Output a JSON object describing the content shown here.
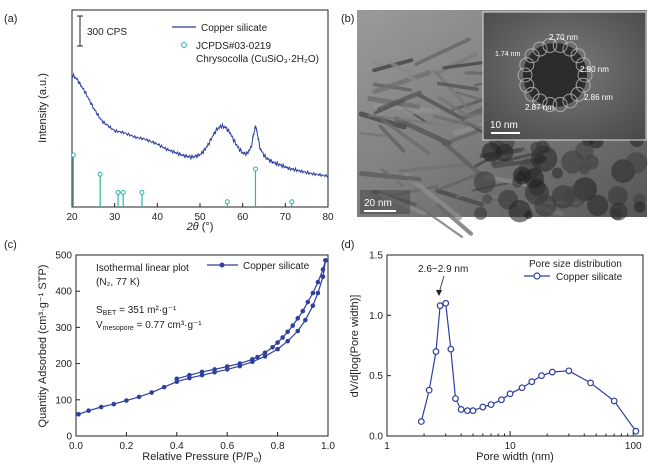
{
  "panels": {
    "a": "(a)",
    "b": "(b)",
    "c": "(c)",
    "d": "(d)"
  },
  "chart_data": [
    {
      "id": "xrd",
      "type": "line",
      "xlabel_prefix": "2θ",
      "xlabel_suffix": " (°)",
      "ylabel": "Intensity (a.u.)",
      "xlim": [
        20,
        80
      ],
      "x_ticks": [
        20,
        30,
        40,
        50,
        60,
        70,
        80
      ],
      "scale_bar_label": "300 CPS",
      "series": [
        {
          "name": "Copper silicate",
          "color": "#2e3f9e",
          "x": [
            20,
            21,
            22,
            23,
            24,
            25,
            26,
            27,
            28,
            29,
            30,
            31,
            32,
            33,
            34,
            35,
            36,
            37,
            38,
            39,
            40,
            41,
            42,
            43,
            44,
            45,
            46,
            47,
            48,
            49,
            50,
            51,
            52,
            53,
            54,
            55,
            56,
            57,
            58,
            59,
            60,
            61,
            62,
            62.5,
            63,
            63.5,
            64,
            65,
            66,
            67,
            68,
            69,
            70,
            71,
            72,
            73,
            74,
            75,
            76,
            77,
            78,
            79,
            80
          ],
          "y": [
            1000,
            980,
            940,
            900,
            850,
            800,
            760,
            720,
            700,
            680,
            660,
            655,
            650,
            640,
            630,
            620,
            615,
            610,
            600,
            590,
            580,
            565,
            550,
            540,
            530,
            520,
            510,
            505,
            500,
            505,
            515,
            540,
            580,
            630,
            670,
            690,
            680,
            650,
            600,
            555,
            525,
            520,
            560,
            630,
            690,
            640,
            560,
            510,
            485,
            470,
            460,
            450,
            440,
            430,
            425,
            418,
            412,
            406,
            400,
            396,
            392,
            388,
            385
          ]
        }
      ],
      "reference": {
        "name": "JCPDS#03-0219",
        "name2": "Chrysocolla (CuSiO₃·2H₂O)",
        "color": "#2fb5a8",
        "x": [
          20.3,
          26.6,
          30.8,
          32.0,
          36.4,
          56.4,
          63.0,
          71.5
        ],
        "intensity": [
          100,
          63,
          28,
          28,
          28,
          10,
          73,
          10
        ]
      }
    },
    {
      "id": "tem",
      "type": "image",
      "scale_label": "20 nm",
      "inset_scale_label": "10 nm",
      "lattice_labels": [
        "1.74 nm",
        "2.70 nm",
        "2.90 nm",
        "2.86 nm",
        "2.87 nm"
      ]
    },
    {
      "id": "isotherm",
      "type": "line",
      "xlabel": "Relative Pressure (P/P",
      "xlabel_sub": "o",
      "xlabel_end": ")",
      "ylabel": "Quantity Adsorbed (cm³·g⁻¹ STP)",
      "xlim": [
        0,
        1.0
      ],
      "ylim": [
        0,
        500
      ],
      "x_ticks": [
        "0.0",
        "0.2",
        "0.4",
        "0.6",
        "0.8",
        "1.0"
      ],
      "y_ticks": [
        0,
        100,
        200,
        300,
        400,
        500
      ],
      "annotation_title": "Isothermal linear plot",
      "annotation_cond": "(N₂, 77 K)",
      "sbet_label": "S",
      "sbet_sub": "BET",
      "sbet_value": " = 351 m²·g⁻¹",
      "vmeso_label": "V",
      "vmeso_sub": "mesopore",
      "vmeso_value": " = 0.77 cm³·g⁻¹",
      "series": [
        {
          "name": "Copper silicate",
          "color": "#2e3f9e",
          "adsorption": {
            "x": [
              0.01,
              0.05,
              0.1,
              0.15,
              0.2,
              0.25,
              0.3,
              0.35,
              0.4,
              0.45,
              0.5,
              0.55,
              0.6,
              0.65,
              0.7,
              0.75,
              0.8,
              0.84,
              0.88,
              0.91,
              0.94,
              0.96,
              0.98,
              0.99
            ],
            "y": [
              60,
              70,
              80,
              88,
              98,
              108,
              120,
              135,
              150,
              160,
              168,
              176,
              184,
              193,
              205,
              220,
              240,
              262,
              290,
              320,
              360,
              395,
              440,
              485
            ]
          },
          "desorption": {
            "x": [
              0.99,
              0.98,
              0.96,
              0.94,
              0.92,
              0.9,
              0.88,
              0.86,
              0.84,
              0.82,
              0.8,
              0.78,
              0.75,
              0.72,
              0.7,
              0.65,
              0.6,
              0.55,
              0.5,
              0.45,
              0.4
            ],
            "y": [
              485,
              460,
              425,
              395,
              370,
              345,
              325,
              305,
              288,
              272,
              258,
              245,
              230,
              218,
              212,
              200,
              192,
              184,
              177,
              168,
              158
            ]
          }
        }
      ]
    },
    {
      "id": "psd",
      "type": "line",
      "xlabel": "Pore width (nm)",
      "ylabel": "dV/d[log(Pore width)]",
      "xscale": "log",
      "xlim": [
        1,
        120
      ],
      "ylim": [
        0,
        1.5
      ],
      "x_ticks": [
        {
          "v": 1,
          "t": "1"
        },
        {
          "v": 10,
          "t": "10"
        },
        {
          "v": 100,
          "t": "100"
        }
      ],
      "y_ticks": [
        "0.0",
        "0.5",
        "1.0",
        "1.5"
      ],
      "legend_title": "Pore size distribution",
      "peak_label": "2.6~2.9 nm",
      "series": [
        {
          "name": "Copper silicate",
          "color": "#2e3f9e",
          "x": [
            1.9,
            2.2,
            2.5,
            2.7,
            3.0,
            3.3,
            3.6,
            4.0,
            4.5,
            5.0,
            6.0,
            7.0,
            8.5,
            10,
            12.5,
            15,
            18,
            22,
            30,
            45,
            70,
            105
          ],
          "y": [
            0.12,
            0.38,
            0.7,
            1.08,
            1.1,
            0.72,
            0.31,
            0.22,
            0.21,
            0.21,
            0.24,
            0.26,
            0.3,
            0.35,
            0.4,
            0.45,
            0.5,
            0.53,
            0.54,
            0.44,
            0.29,
            0.04
          ]
        }
      ]
    }
  ]
}
